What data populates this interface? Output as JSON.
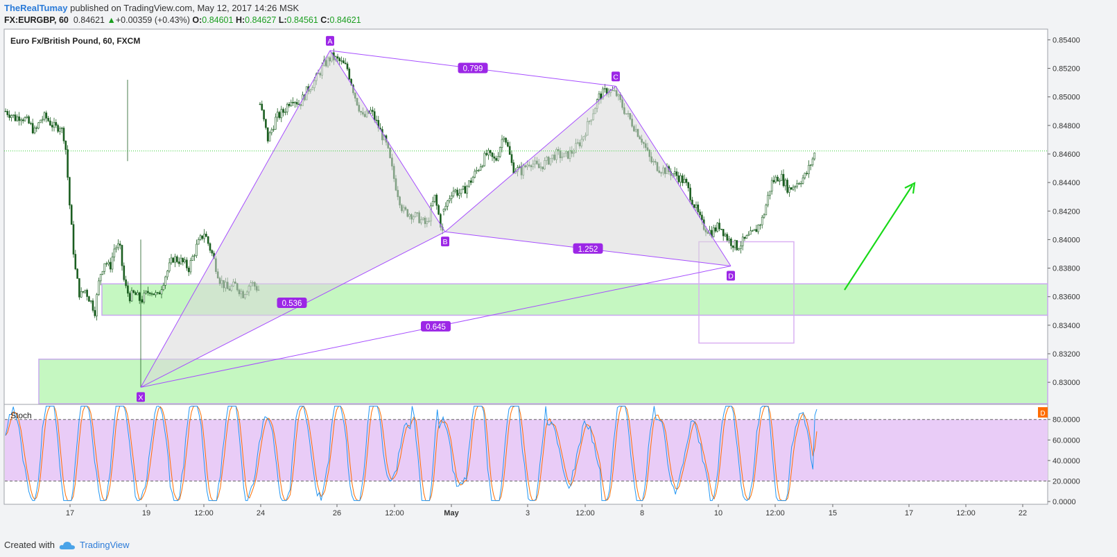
{
  "header": {
    "author": "TheRealTumay",
    "published_text": "published on TradingView.com, May 12, 2017 14:26 MSK",
    "symbol": "FX:EURGBP, 60",
    "last": "0.84621",
    "change_arrow": "▲",
    "change": "+0.00359 (+0.43%)",
    "o_label": "O:",
    "o": "0.84601",
    "h_label": "H:",
    "h": "0.84627",
    "l_label": "L:",
    "l": "0.84561",
    "c_label": "C:",
    "c": "0.84621"
  },
  "footer": {
    "created_with": "Created with",
    "brand": "TradingView",
    "icon": "cloud-logo-icon"
  },
  "colors": {
    "up": "#26a69a",
    "down": "#ef5350",
    "candle": "#1b5e20",
    "pattern": "#a64dff",
    "pattern_fill": "#d8d8d8",
    "zone": "#c5f7c1",
    "zone_border": "#c9a8ef",
    "stoch_bg": "#e9ccf7",
    "stoch_k": "#2196f3",
    "stoch_d": "#ff6d00",
    "arrow": "#18d918",
    "price_line": "#3ad13a"
  },
  "chart_data": [
    {
      "type": "candlestick",
      "title": "Euro Fx/British Pound, 60, FXCM",
      "x_tick_labels": [
        "17",
        "19",
        "12:00",
        "24",
        "26",
        "12:00",
        "May",
        "3",
        "12:00",
        "8",
        "10",
        "12:00",
        "15",
        "17",
        "12:00",
        "22"
      ],
      "y_tick_labels": [
        "0.85400",
        "0.85200",
        "0.85000",
        "0.84800",
        "0.84600",
        "0.84400",
        "0.84200",
        "0.84000",
        "0.83800",
        "0.83600",
        "0.83400",
        "0.83200",
        "0.83000"
      ],
      "ylim": [
        0.8285,
        0.8547
      ],
      "last_price": 0.84621,
      "close_path_approx": [
        [
          0.849,
          0.8488,
          0.8485,
          0.8487,
          0.8484,
          0.848,
          0.8475,
          0.8484,
          0.8486,
          0.8482,
          0.8478,
          0.848,
          0.847,
          0.842,
          0.838,
          0.836,
          0.8365,
          0.8358,
          0.835,
          0.8375,
          0.8385,
          0.838,
          0.8395,
          0.8395,
          0.8368,
          0.836,
          0.8362,
          0.8358
        ],
        [
          0.8495,
          0.847,
          0.8485,
          0.849,
          0.85,
          0.8495,
          0.8505,
          0.8512,
          0.8522,
          0.8528,
          0.8525,
          0.852,
          0.85,
          0.8485,
          0.849,
          0.8478,
          0.8465,
          0.844,
          0.842,
          0.8418,
          0.8415,
          0.841,
          0.843,
          0.8405
        ],
        [
          0.842,
          0.8435,
          0.8432,
          0.844,
          0.845,
          0.846,
          0.8455,
          0.8475,
          0.845,
          0.8448,
          0.8455,
          0.845,
          0.8455,
          0.846,
          0.8458,
          0.8462,
          0.847,
          0.8485,
          0.85,
          0.8505,
          0.8502,
          0.849,
          0.848,
          0.847,
          0.8455,
          0.845,
          0.8448,
          0.8445,
          0.844,
          0.8425,
          0.841,
          0.8405,
          0.841,
          0.84,
          0.8395,
          0.84,
          0.8405,
          0.8415,
          0.844,
          0.8445,
          0.8435,
          0.844,
          0.8445,
          0.846
        ]
      ],
      "pattern": {
        "points": [
          {
            "label": "X",
            "price": 0.82965
          },
          {
            "label": "A",
            "price": 0.85325
          },
          {
            "label": "B",
            "price": 0.84055
          },
          {
            "label": "C",
            "price": 0.85075
          },
          {
            "label": "D",
            "price": 0.83815
          }
        ],
        "ratios": [
          {
            "label": "0.536"
          },
          {
            "label": "0.799"
          },
          {
            "label": "1.252"
          },
          {
            "label": "0.645"
          }
        ]
      },
      "zones": [
        {
          "name": "support-zone-upper",
          "from": 0.8347,
          "to": 0.8369
        },
        {
          "name": "support-zone-lower",
          "from": 0.8285,
          "to": 0.83162
        }
      ],
      "target_box": {
        "from": 0.83275,
        "to": 0.83985
      },
      "forecast_arrow": "up"
    },
    {
      "type": "line",
      "title": "Stoch",
      "y_tick_labels": [
        "80.0000",
        "60.0000",
        "40.0000",
        "20.0000",
        "0.0000"
      ],
      "ylim": [
        -2,
        94
      ],
      "levels": [
        80,
        20
      ],
      "series": [
        {
          "key": "K"
        },
        {
          "key": "D"
        }
      ],
      "badge": "D"
    }
  ]
}
